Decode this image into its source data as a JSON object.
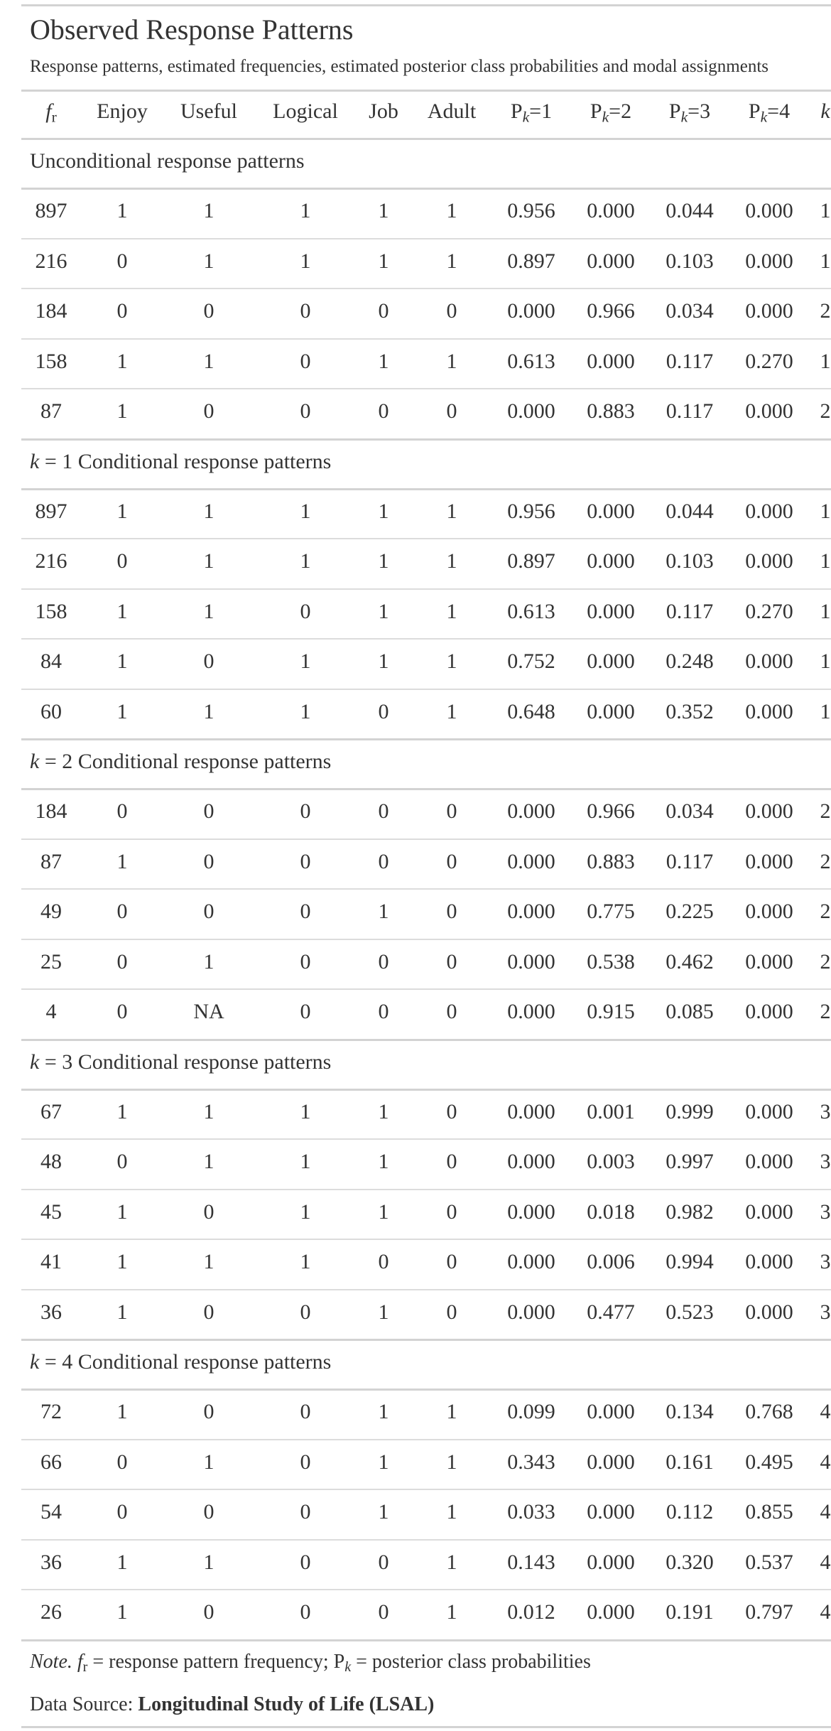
{
  "title": "Observed Response Patterns",
  "subtitle": "Response patterns, estimated frequencies, estimated posterior class probabilities and modal assignments",
  "columns": {
    "fr_base": "f",
    "fr_sub": "r",
    "enjoy": "Enjoy",
    "useful": "Useful",
    "logical": "Logical",
    "job": "Job",
    "adult": "Adult",
    "p1": "=1",
    "p2": "=2",
    "p3": "=3",
    "p4": "=4",
    "p_base": "P",
    "p_sub": "k",
    "k": "k"
  },
  "groups": [
    {
      "label": "Unconditional response patterns",
      "rows": [
        [
          "897",
          "1",
          "1",
          "1",
          "1",
          "1",
          "0.956",
          "0.000",
          "0.044",
          "0.000",
          "1"
        ],
        [
          "216",
          "0",
          "1",
          "1",
          "1",
          "1",
          "0.897",
          "0.000",
          "0.103",
          "0.000",
          "1"
        ],
        [
          "184",
          "0",
          "0",
          "0",
          "0",
          "0",
          "0.000",
          "0.966",
          "0.034",
          "0.000",
          "2"
        ],
        [
          "158",
          "1",
          "1",
          "0",
          "1",
          "1",
          "0.613",
          "0.000",
          "0.117",
          "0.270",
          "1"
        ],
        [
          "87",
          "1",
          "0",
          "0",
          "0",
          "0",
          "0.000",
          "0.883",
          "0.117",
          "0.000",
          "2"
        ]
      ]
    },
    {
      "label_k": "k",
      "label": " = 1 Conditional response patterns",
      "rows": [
        [
          "897",
          "1",
          "1",
          "1",
          "1",
          "1",
          "0.956",
          "0.000",
          "0.044",
          "0.000",
          "1"
        ],
        [
          "216",
          "0",
          "1",
          "1",
          "1",
          "1",
          "0.897",
          "0.000",
          "0.103",
          "0.000",
          "1"
        ],
        [
          "158",
          "1",
          "1",
          "0",
          "1",
          "1",
          "0.613",
          "0.000",
          "0.117",
          "0.270",
          "1"
        ],
        [
          "84",
          "1",
          "0",
          "1",
          "1",
          "1",
          "0.752",
          "0.000",
          "0.248",
          "0.000",
          "1"
        ],
        [
          "60",
          "1",
          "1",
          "1",
          "0",
          "1",
          "0.648",
          "0.000",
          "0.352",
          "0.000",
          "1"
        ]
      ]
    },
    {
      "label_k": "k",
      "label": " = 2 Conditional response patterns",
      "rows": [
        [
          "184",
          "0",
          "0",
          "0",
          "0",
          "0",
          "0.000",
          "0.966",
          "0.034",
          "0.000",
          "2"
        ],
        [
          "87",
          "1",
          "0",
          "0",
          "0",
          "0",
          "0.000",
          "0.883",
          "0.117",
          "0.000",
          "2"
        ],
        [
          "49",
          "0",
          "0",
          "0",
          "1",
          "0",
          "0.000",
          "0.775",
          "0.225",
          "0.000",
          "2"
        ],
        [
          "25",
          "0",
          "1",
          "0",
          "0",
          "0",
          "0.000",
          "0.538",
          "0.462",
          "0.000",
          "2"
        ],
        [
          "4",
          "0",
          "NA",
          "0",
          "0",
          "0",
          "0.000",
          "0.915",
          "0.085",
          "0.000",
          "2"
        ]
      ]
    },
    {
      "label_k": "k",
      "label": " = 3 Conditional response patterns",
      "rows": [
        [
          "67",
          "1",
          "1",
          "1",
          "1",
          "0",
          "0.000",
          "0.001",
          "0.999",
          "0.000",
          "3"
        ],
        [
          "48",
          "0",
          "1",
          "1",
          "1",
          "0",
          "0.000",
          "0.003",
          "0.997",
          "0.000",
          "3"
        ],
        [
          "45",
          "1",
          "0",
          "1",
          "1",
          "0",
          "0.000",
          "0.018",
          "0.982",
          "0.000",
          "3"
        ],
        [
          "41",
          "1",
          "1",
          "1",
          "0",
          "0",
          "0.000",
          "0.006",
          "0.994",
          "0.000",
          "3"
        ],
        [
          "36",
          "1",
          "0",
          "0",
          "1",
          "0",
          "0.000",
          "0.477",
          "0.523",
          "0.000",
          "3"
        ]
      ]
    },
    {
      "label_k": "k",
      "label": " = 4 Conditional response patterns",
      "rows": [
        [
          "72",
          "1",
          "0",
          "0",
          "1",
          "1",
          "0.099",
          "0.000",
          "0.134",
          "0.768",
          "4"
        ],
        [
          "66",
          "0",
          "1",
          "0",
          "1",
          "1",
          "0.343",
          "0.000",
          "0.161",
          "0.495",
          "4"
        ],
        [
          "54",
          "0",
          "0",
          "0",
          "1",
          "1",
          "0.033",
          "0.000",
          "0.112",
          "0.855",
          "4"
        ],
        [
          "36",
          "1",
          "1",
          "0",
          "0",
          "1",
          "0.143",
          "0.000",
          "0.320",
          "0.537",
          "4"
        ],
        [
          "26",
          "1",
          "0",
          "0",
          "0",
          "1",
          "0.012",
          "0.000",
          "0.191",
          "0.797",
          "4"
        ]
      ]
    }
  ],
  "note": {
    "label": "Note.",
    "fr_base": "f",
    "fr_sub": "r",
    "text1": " = response pattern frequency; ",
    "p_base": "P",
    "p_sub": "k",
    "text2": " = posterior class probabilities"
  },
  "source": {
    "label": "Data Source: ",
    "name": "Longitudinal Study of Life (LSAL)"
  }
}
